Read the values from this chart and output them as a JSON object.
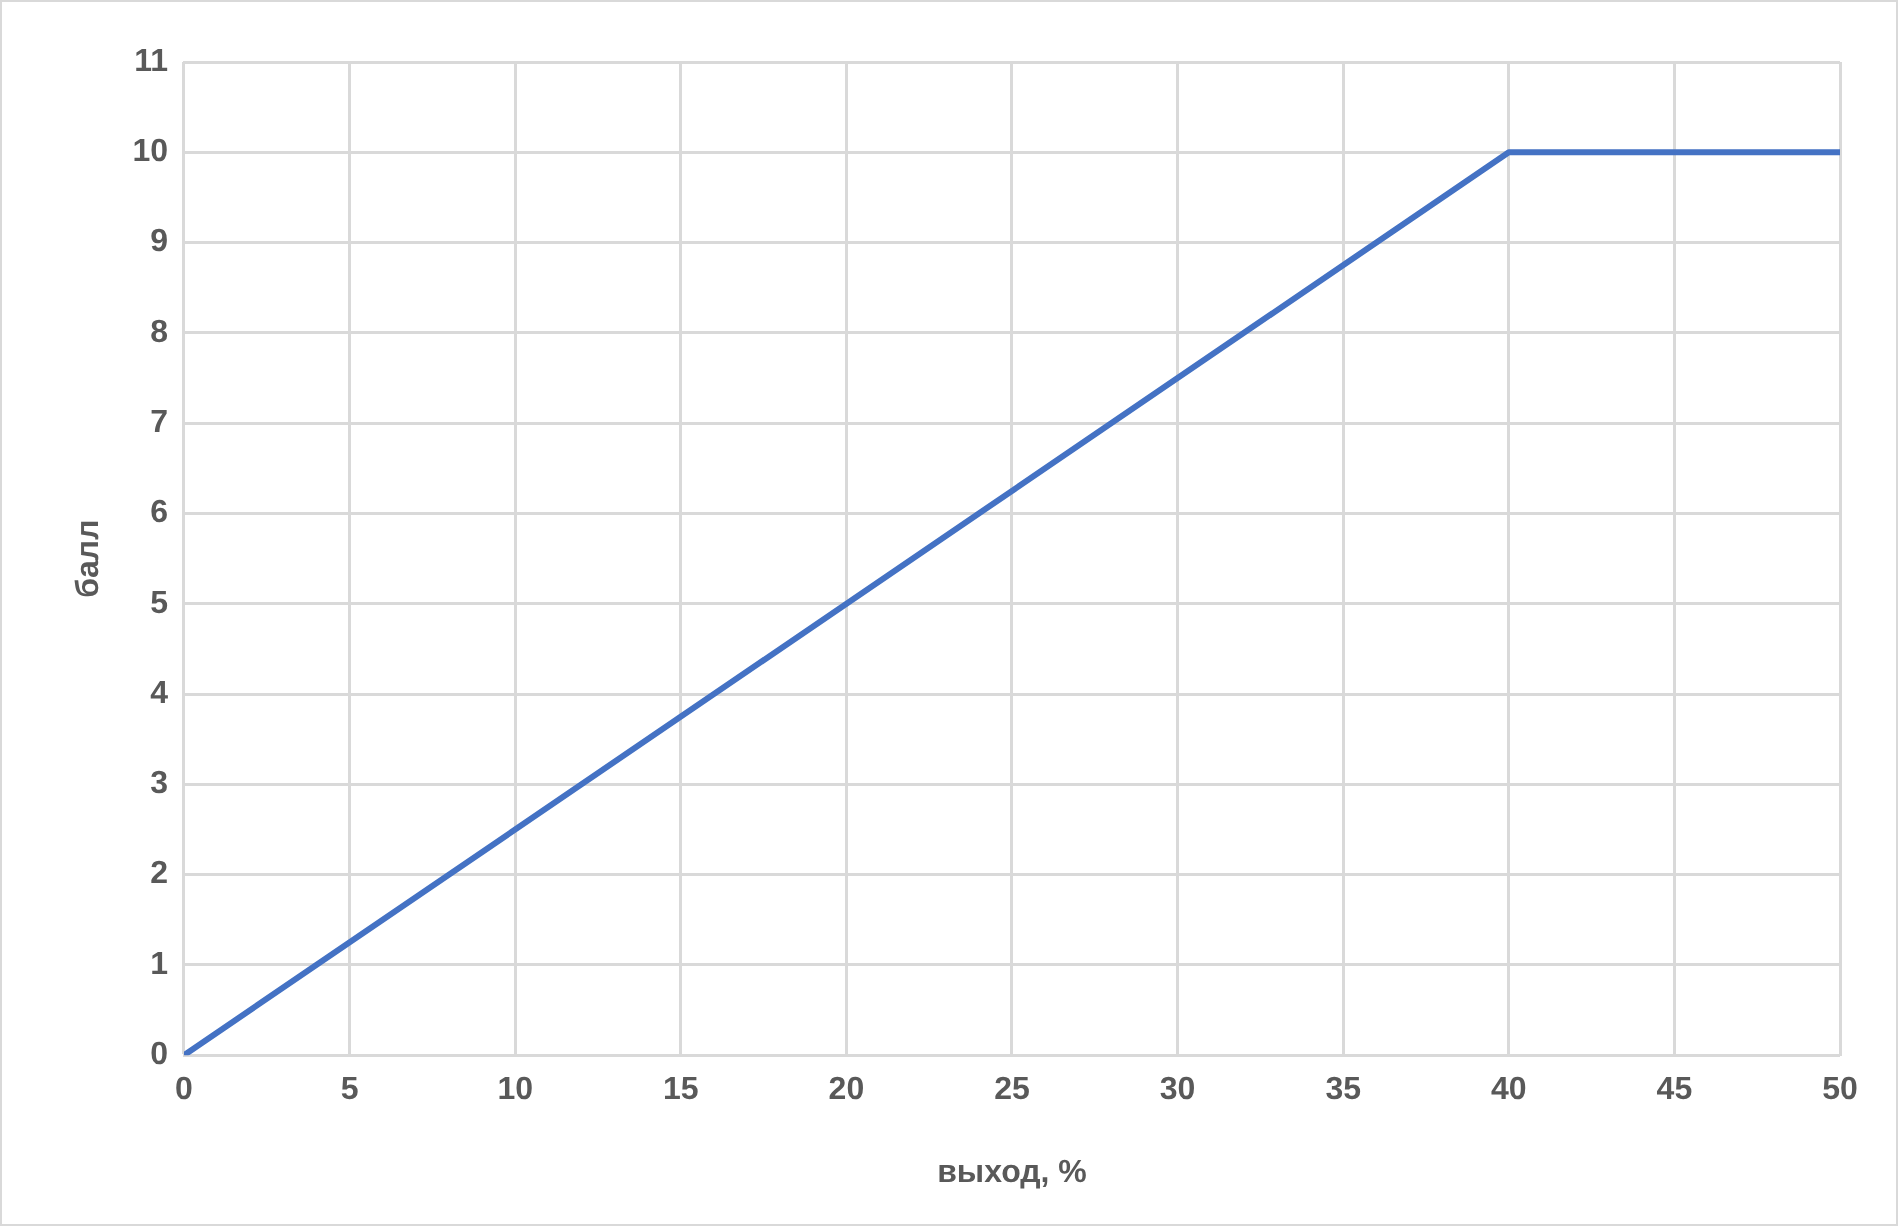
{
  "chart_data": {
    "type": "line",
    "xlabel": "выход, %",
    "ylabel": "балл",
    "x": [
      0,
      40,
      50
    ],
    "series": [
      {
        "color": "#4472c4",
        "values": [
          0,
          10,
          10
        ]
      }
    ],
    "xlim": [
      0,
      50
    ],
    "xticks": [
      0,
      5,
      10,
      15,
      20,
      25,
      30,
      35,
      40,
      45,
      50
    ],
    "ylim": [
      0,
      11
    ],
    "yticks": [
      0,
      1,
      2,
      3,
      4,
      5,
      6,
      7,
      8,
      9,
      10,
      11
    ],
    "grid": true,
    "marker": "none",
    "line_style": "solid"
  }
}
